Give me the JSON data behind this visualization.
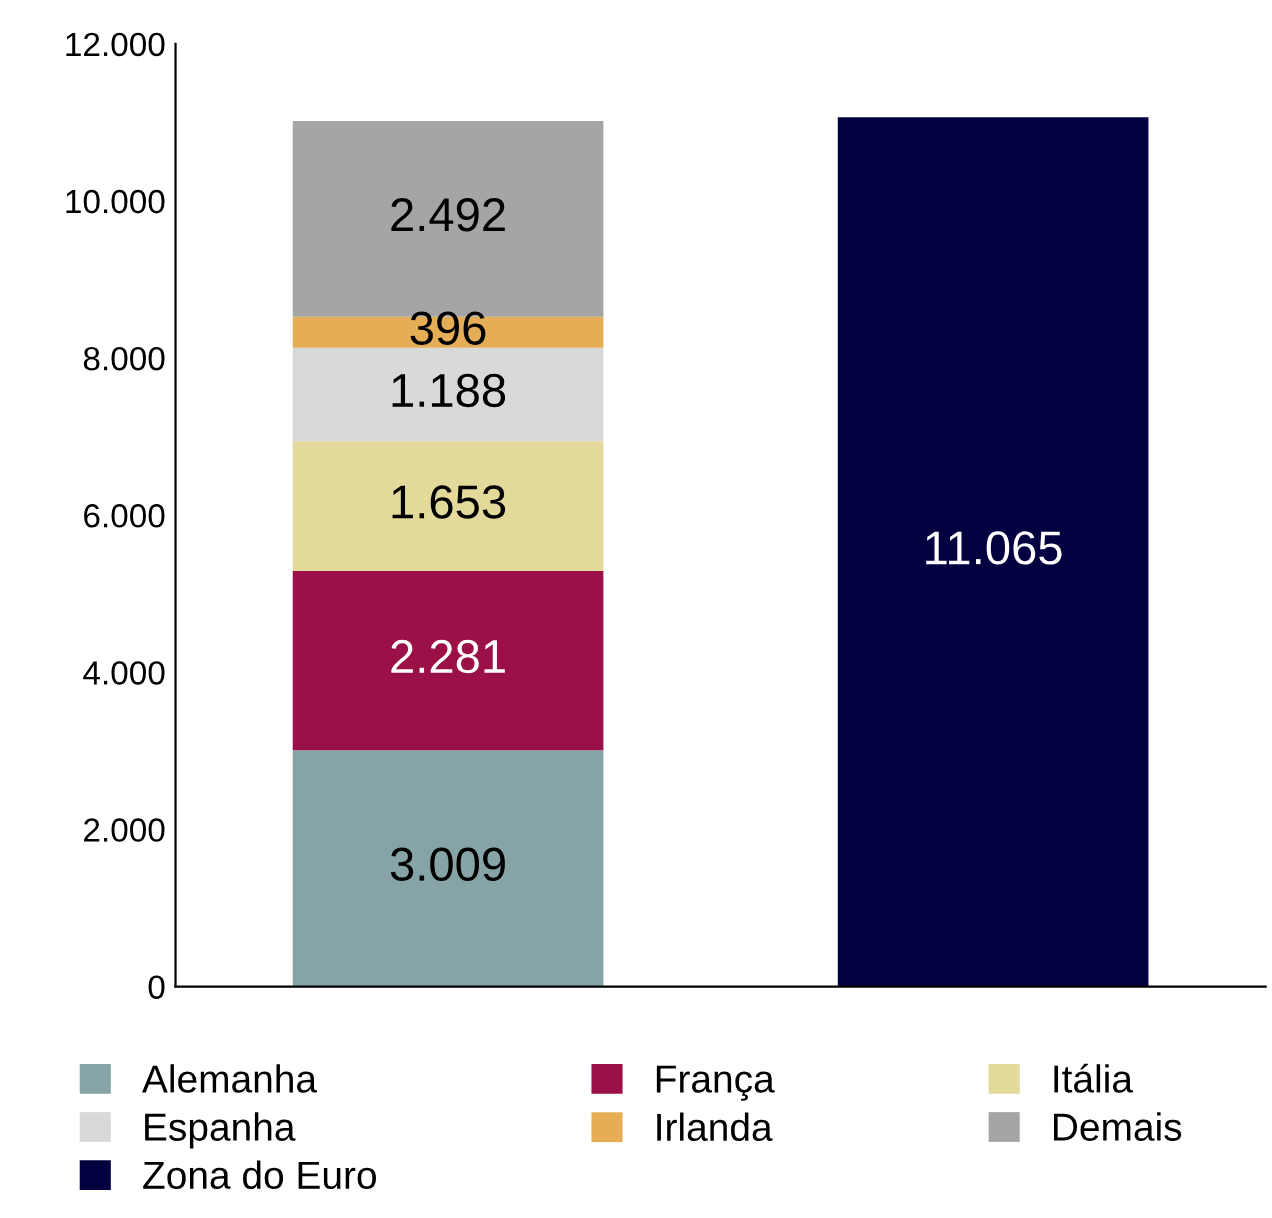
{
  "chart_data": {
    "type": "bar",
    "stacked": true,
    "categories": [
      null,
      null
    ],
    "series": [
      {
        "name": "Alemanha",
        "color": "#86a4a6",
        "values": [
          3009,
          null
        ],
        "value_labels": [
          "3.009",
          null
        ]
      },
      {
        "name": "França",
        "color": "#9b1046",
        "values": [
          2281,
          null
        ],
        "value_labels": [
          "2.281",
          null
        ]
      },
      {
        "name": "Itália",
        "color": "#e3d99b",
        "values": [
          1653,
          null
        ],
        "value_labels": [
          "1.653",
          null
        ]
      },
      {
        "name": "Espanha",
        "color": "#d9d9d9",
        "values": [
          1188,
          null
        ],
        "value_labels": [
          "1.188",
          null
        ]
      },
      {
        "name": "Irlanda",
        "color": "#e5ad55",
        "values": [
          396,
          null
        ],
        "value_labels": [
          "396",
          null
        ]
      },
      {
        "name": "Demais",
        "color": "#a5a5a5",
        "values": [
          2492,
          null
        ],
        "value_labels": [
          "2.492",
          null
        ]
      },
      {
        "name": "Zona do Euro",
        "color": "#030040",
        "values": [
          null,
          11065
        ],
        "value_labels": [
          null,
          "11.065"
        ]
      }
    ],
    "ylim": [
      0,
      12000
    ],
    "yticks": [
      0,
      {
        "value": 2000,
        "label": "2.000"
      },
      {
        "value": 4000,
        "label": "4.000"
      },
      {
        "value": 6000,
        "label": "6.000"
      },
      {
        "value": 8000,
        "label": "8.000"
      },
      {
        "value": 10000,
        "label": "10.000"
      },
      {
        "value": 12000,
        "label": "12.000"
      }
    ],
    "grid": false,
    "legend": "bottom"
  }
}
